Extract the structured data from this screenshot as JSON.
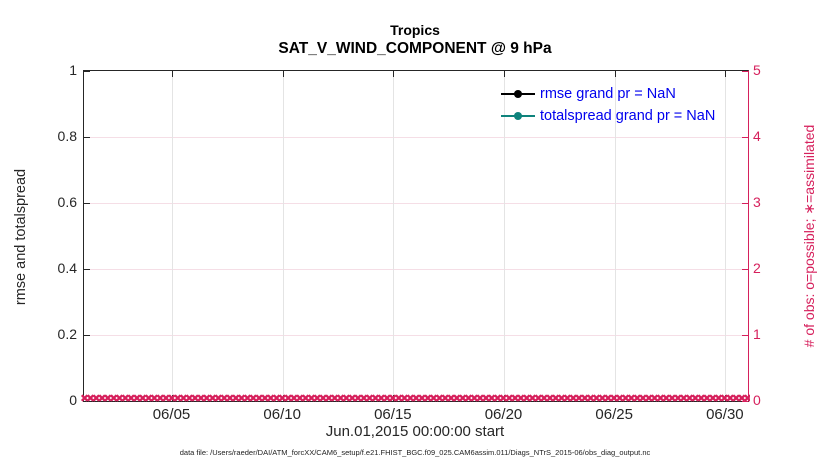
{
  "title": {
    "line1": "Tropics",
    "line2": "SAT_V_WIND_COMPONENT @ 9 hPa"
  },
  "axes": {
    "left": {
      "label": "rmse and totalspread",
      "tick_labels": [
        "0",
        "0.2",
        "0.4",
        "0.6",
        "0.8",
        "1"
      ]
    },
    "right": {
      "label": "# of obs: o=possible; ∗=assimilated",
      "tick_labels": [
        "0",
        "1",
        "2",
        "3",
        "4",
        "5"
      ]
    },
    "x": {
      "label": "Jun.01,2015 00:00:00 start",
      "ticks": [
        {
          "label": "06/05",
          "pos_pct": 13.33
        },
        {
          "label": "06/10",
          "pos_pct": 30.0
        },
        {
          "label": "06/15",
          "pos_pct": 46.67
        },
        {
          "label": "06/20",
          "pos_pct": 63.33
        },
        {
          "label": "06/25",
          "pos_pct": 80.0
        },
        {
          "label": "06/30",
          "pos_pct": 96.67
        }
      ]
    }
  },
  "legend": [
    {
      "label": "rmse grand pr = NaN",
      "color": "#000000"
    },
    {
      "label": "totalspread grand pr = NaN",
      "color": "#0E837C"
    }
  ],
  "markers": {
    "symbol": "✖",
    "count": 118
  },
  "caption": "data file: /Users/raeder/DAI/ATM_forcXX/CAM6_setup/f.e21.FHIST_BGC.f09_025.CAM6assim.011/Diags_NTrS_2015-06/obs_diag_output.nc",
  "colors": {
    "axis": "#262626",
    "right_axis": "#D6205C",
    "legend_text": "#0000EE",
    "grid_horizontal": "#F5DEE6",
    "grid_vertical": "#E4E4E4",
    "series_rmse": "#000000",
    "series_totalspread": "#0E837C"
  },
  "chart_data": {
    "type": "line",
    "title": "Tropics",
    "subtitle": "SAT_V_WIND_COMPONENT @ 9 hPa",
    "xlabel": "Jun.01,2015 00:00:00 start",
    "x_range": [
      "2015-06-01 00:00:00",
      "2015-07-01 00:00:00"
    ],
    "x_tick_labels": [
      "06/05",
      "06/10",
      "06/15",
      "06/20",
      "06/25",
      "06/30"
    ],
    "left_axis": {
      "label": "rmse and totalspread",
      "lim": [
        0,
        1
      ],
      "ticks": [
        0,
        0.2,
        0.4,
        0.6,
        0.8,
        1
      ]
    },
    "right_axis": {
      "label": "# of obs: o=possible; ∗=assimilated",
      "lim": [
        0,
        5
      ],
      "ticks": [
        0,
        1,
        2,
        3,
        4,
        5
      ]
    },
    "series": [
      {
        "name": "rmse",
        "grand_pr": "NaN",
        "values": "NaN (no line drawn)"
      },
      {
        "name": "totalspread",
        "grand_pr": "NaN",
        "values": "NaN (no line drawn)"
      }
    ],
    "observations": {
      "possible": 0,
      "assimilated": 0,
      "note": "dense crimson ∗ markers along y=0 (right axis) spanning the full time range"
    },
    "legend_position": "upper-right-inside",
    "grid": true
  }
}
